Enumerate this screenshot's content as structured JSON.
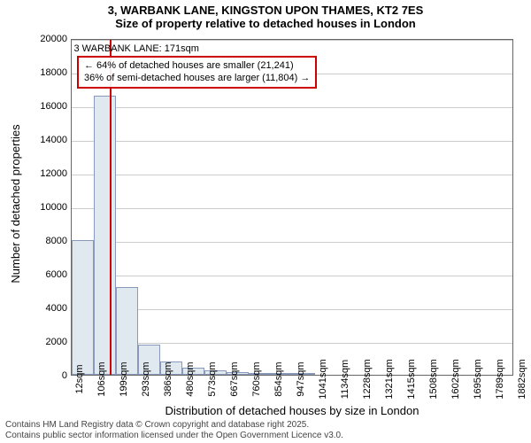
{
  "title_main": "3, WARBANK LANE, KINGSTON UPON THAMES, KT2 7ES",
  "title_sub": "Size of property relative to detached houses in London",
  "y_axis_label": "Number of detached properties",
  "x_axis_label": "Distribution of detached houses by size in London",
  "chart": {
    "type": "histogram",
    "y_max": 20000,
    "y_ticks": [
      0,
      2000,
      4000,
      6000,
      8000,
      10000,
      12000,
      14000,
      16000,
      18000,
      20000
    ],
    "x_tick_labels": [
      "12sqm",
      "106sqm",
      "199sqm",
      "293sqm",
      "386sqm",
      "480sqm",
      "573sqm",
      "667sqm",
      "760sqm",
      "854sqm",
      "947sqm",
      "1041sqm",
      "1134sqm",
      "1228sqm",
      "1321sqm",
      "1415sqm",
      "1508sqm",
      "1602sqm",
      "1695sqm",
      "1789sqm",
      "1882sqm"
    ],
    "x_min": 12,
    "x_max": 1882,
    "bars": [
      {
        "x0": 12,
        "x1": 106,
        "y": 8000
      },
      {
        "x0": 106,
        "x1": 199,
        "y": 16600
      },
      {
        "x0": 199,
        "x1": 293,
        "y": 5200
      },
      {
        "x0": 293,
        "x1": 386,
        "y": 1800
      },
      {
        "x0": 386,
        "x1": 480,
        "y": 800
      },
      {
        "x0": 480,
        "x1": 573,
        "y": 400
      },
      {
        "x0": 573,
        "x1": 667,
        "y": 250
      },
      {
        "x0": 667,
        "x1": 760,
        "y": 150
      },
      {
        "x0": 760,
        "x1": 854,
        "y": 100
      },
      {
        "x0": 854,
        "x1": 947,
        "y": 60
      },
      {
        "x0": 947,
        "x1": 1041,
        "y": 40
      }
    ],
    "bar_fill": "#e0e8f0",
    "bar_border": "#8899bb",
    "grid_color": "#cccccc",
    "axis_color": "#666666",
    "ref_line_x": 171,
    "ref_line_color": "#cc0000"
  },
  "callout": {
    "title": "3 WARBANK LANE: 171sqm",
    "line1": "← 64% of detached houses are smaller (21,241)",
    "line2": "36% of semi-detached houses are larger (11,804) →",
    "border_color": "#cc0000"
  },
  "footer_line1": "Contains HM Land Registry data © Crown copyright and database right 2025.",
  "footer_line2": "Contains public sector information licensed under the Open Government Licence v3.0."
}
